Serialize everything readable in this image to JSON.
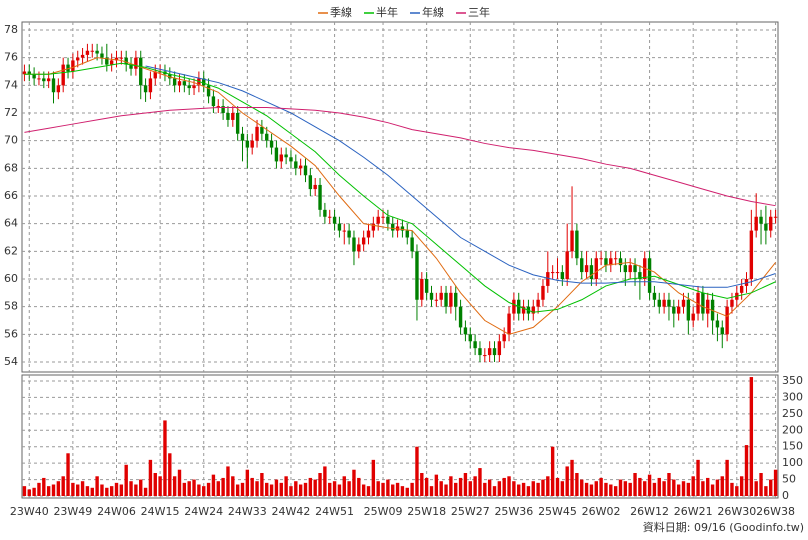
{
  "chart_data": {
    "type": "candlestick",
    "xticks": [
      {
        "value": 1,
        "label": "23W40"
      },
      {
        "value": 10,
        "label": "23W49"
      },
      {
        "value": 19,
        "label": "24W06"
      },
      {
        "value": 28,
        "label": "24W15"
      },
      {
        "value": 37,
        "label": "24W24"
      },
      {
        "value": 46,
        "label": "24W33"
      },
      {
        "value": 55,
        "label": "24W42"
      },
      {
        "value": 64,
        "label": "24W51"
      },
      {
        "value": 74,
        "label": "25W09"
      },
      {
        "value": 83,
        "label": "25W18"
      },
      {
        "value": 92,
        "label": "25W27"
      },
      {
        "value": 101,
        "label": "25W36"
      },
      {
        "value": 110,
        "label": "25W45"
      },
      {
        "value": 119,
        "label": "26W02"
      },
      {
        "value": 129,
        "label": "26W12"
      },
      {
        "value": 138,
        "label": "26W21"
      },
      {
        "value": 147,
        "label": "26W30"
      },
      {
        "value": 155,
        "label": "26W38"
      }
    ],
    "xlim": [
      -0.5,
      155.5
    ],
    "ylim": [
      54,
      78
    ],
    "yticks": [
      54,
      56,
      58,
      60,
      62,
      64,
      66,
      68,
      70,
      72,
      74,
      76,
      78
    ],
    "grid": true,
    "up_color": "#e00000",
    "down_color": "#008000",
    "open": [
      74.8,
      75,
      74.8,
      74.5,
      74.5,
      74.3,
      74.5,
      73.5,
      74,
      75.5,
      75,
      75.8,
      76,
      76.2,
      76.5,
      76.5,
      76.3,
      76,
      75.5,
      75.8,
      76,
      76,
      75.5,
      75.2,
      76,
      74,
      73.5,
      74.5,
      75,
      75,
      74.8,
      74.5,
      74,
      74.3,
      74,
      73.8,
      74,
      74.5,
      74,
      73.2,
      72.5,
      72.5,
      72,
      71.5,
      72,
      70.5,
      70,
      69.5,
      70,
      71,
      70.5,
      70,
      69.5,
      68.5,
      69,
      68.8,
      68.5,
      68,
      68.2,
      67.5,
      66.5,
      66.8,
      65,
      64.5,
      64.5,
      64,
      63.5,
      63.5,
      63,
      62,
      62.5,
      63,
      63.5,
      64,
      64.5,
      64.5,
      64,
      63.5,
      63.8,
      63.5,
      63,
      62,
      58.5,
      60,
      59,
      58.5,
      58.5,
      59,
      58,
      59,
      58,
      56.5,
      56,
      55.5,
      55,
      54.5,
      54.5,
      55,
      54.5,
      55.5,
      56,
      57.5,
      58.5,
      57.5,
      58,
      57.5,
      58,
      58.5,
      59.5,
      60.5,
      60.5,
      60.5,
      60,
      62,
      63.5,
      61.5,
      60.5,
      61,
      60,
      61.5,
      61.5,
      61,
      61.5,
      61.5,
      61,
      60.5,
      61,
      60.5,
      60,
      61.5,
      59,
      58.5,
      58,
      58.5,
      58,
      57.5,
      58,
      58.5,
      57,
      57.5,
      59,
      57.5,
      58.5,
      57,
      56.5,
      56,
      58,
      58.5,
      59,
      59.5,
      60,
      63.5,
      64.5,
      64,
      63.5,
      64.5
    ],
    "high": [
      75.5,
      75.5,
      75.3,
      75,
      75,
      75,
      75,
      74.5,
      76,
      76,
      76.3,
      76.5,
      76.7,
      77,
      77,
      77,
      76.8,
      77,
      76.3,
      76.5,
      76.5,
      76.5,
      76,
      76.5,
      76.5,
      74.5,
      75,
      75.5,
      75.5,
      75.5,
      75.3,
      75,
      74.8,
      74.8,
      74.5,
      74.5,
      75,
      75,
      74.5,
      73.7,
      73,
      73,
      72.5,
      72.5,
      72.5,
      71,
      70.5,
      70.5,
      71.5,
      71.5,
      71,
      70.5,
      70,
      69.5,
      69.5,
      69.3,
      69,
      68.7,
      68.7,
      68,
      67.3,
      67.3,
      65.5,
      65,
      65,
      64.5,
      64,
      64,
      63.5,
      63,
      63.5,
      64,
      64.5,
      65,
      65,
      65,
      64.5,
      64.3,
      64.3,
      64,
      63.5,
      62.5,
      60.5,
      60.5,
      59.5,
      59,
      59.5,
      59.5,
      59.5,
      59.5,
      58.5,
      57,
      56.5,
      56,
      55.5,
      55,
      55.5,
      55.5,
      56,
      56.5,
      58,
      59,
      59,
      58.5,
      58.5,
      58.5,
      59,
      60,
      62,
      61,
      61.5,
      61,
      64,
      66.7,
      64,
      62,
      62,
      61.5,
      62,
      62,
      62,
      62,
      62,
      62,
      61.5,
      61.5,
      61.5,
      61,
      62,
      62,
      59.5,
      59,
      59,
      59,
      58.5,
      58.5,
      59,
      59,
      58,
      59.5,
      59.5,
      59,
      59,
      57.5,
      57,
      58.5,
      59,
      59.5,
      60,
      60.5,
      65,
      66.2,
      65,
      65.3,
      65,
      65
    ],
    "low": [
      74.3,
      74.3,
      74,
      74,
      73.8,
      73.8,
      72.7,
      73,
      73.5,
      74.5,
      74.5,
      75.3,
      75.5,
      75.7,
      76,
      75.8,
      75.5,
      75,
      75,
      75.3,
      75.5,
      75,
      74.7,
      74.7,
      73,
      72.8,
      73,
      74,
      74.5,
      74.3,
      74,
      73.5,
      73.5,
      73.5,
      73.3,
      73.3,
      73.5,
      73.5,
      72.7,
      72,
      72,
      71.5,
      71,
      71,
      70,
      68.5,
      68,
      69,
      69.5,
      70,
      69.5,
      69,
      68,
      68,
      68.3,
      68,
      67.5,
      67.5,
      67,
      66,
      66,
      64.5,
      64,
      64,
      63.5,
      63,
      62.5,
      62.5,
      61,
      61.5,
      62,
      62.5,
      63,
      63.5,
      64,
      63.5,
      63,
      63,
      63,
      62.5,
      61.5,
      57,
      58,
      58.5,
      58,
      58,
      58,
      57.5,
      57.5,
      57,
      56,
      55.5,
      55,
      54.5,
      54,
      54,
      54,
      54,
      54,
      55,
      55.5,
      57,
      57,
      57,
      57,
      57,
      57.5,
      58,
      59,
      60,
      60,
      59.5,
      59.5,
      61.5,
      61,
      60,
      60,
      59.5,
      59.5,
      61,
      60.5,
      60.5,
      61,
      60.5,
      59.5,
      60,
      59.5,
      58.5,
      59.5,
      58.5,
      58,
      57.5,
      57.5,
      57,
      56.5,
      57,
      57.5,
      56,
      56.5,
      57,
      57,
      56.5,
      56,
      55.5,
      55,
      55.5,
      57.5,
      58,
      58.5,
      59,
      59.5,
      63,
      62.5,
      62.5,
      63,
      64
    ],
    "close": [
      75,
      74.8,
      74.5,
      74.5,
      74.3,
      74.5,
      73.5,
      74,
      75.5,
      75,
      75.8,
      76,
      76.2,
      76.5,
      76.5,
      76.3,
      76,
      75.5,
      75.8,
      76,
      76,
      75.5,
      75.2,
      76,
      74,
      73.5,
      74.5,
      75,
      75,
      74.8,
      74.5,
      74,
      74.3,
      74,
      73.8,
      74,
      74.5,
      74,
      73.2,
      72.5,
      72.5,
      72,
      71.5,
      72,
      70.5,
      70,
      69.5,
      70,
      71,
      70.5,
      70,
      69.5,
      68.5,
      69,
      68.8,
      68.5,
      68,
      68.2,
      67.5,
      66.5,
      66.8,
      65,
      64.5,
      64.5,
      64,
      63.5,
      63.5,
      63,
      62,
      62.5,
      63,
      63.5,
      64,
      64.5,
      64.5,
      64,
      63.5,
      63.8,
      63.5,
      63,
      62,
      58.5,
      60,
      59,
      58.5,
      58.5,
      59,
      58,
      59,
      58,
      56.5,
      56,
      55.5,
      55,
      54.5,
      54.5,
      55,
      54.5,
      55.5,
      56,
      57.5,
      58.5,
      57.5,
      58,
      57.5,
      58,
      58.5,
      59.5,
      60.5,
      60.5,
      60.5,
      60,
      62,
      63.5,
      61.5,
      60.5,
      61,
      60,
      61.5,
      61.5,
      61,
      61.5,
      61.5,
      61,
      60.5,
      61,
      60.5,
      60,
      61.5,
      59,
      58.5,
      58,
      58.5,
      58,
      57.5,
      58,
      58.5,
      57,
      57.5,
      59,
      57.5,
      58.5,
      57,
      56.5,
      56,
      58,
      58.5,
      59,
      59.5,
      60,
      63.5,
      64.5,
      64,
      63.5,
      64.5,
      64.5
    ],
    "moving_averages": {
      "x": [
        0,
        5,
        10,
        15,
        20,
        25,
        30,
        35,
        40,
        45,
        50,
        55,
        60,
        65,
        70,
        75,
        80,
        85,
        90,
        95,
        100,
        105,
        110,
        115,
        120,
        125,
        130,
        135,
        140,
        145,
        150,
        155
      ],
      "series": [
        {
          "name": "季線",
          "color": "#e06a10",
          "values": [
            74.8,
            74.8,
            75.3,
            76,
            75.8,
            75.2,
            74.6,
            74.2,
            73.5,
            72,
            70.8,
            69.6,
            68.2,
            66,
            64,
            63.7,
            63.5,
            61.5,
            59,
            57,
            56,
            56.5,
            58,
            59.8,
            61,
            61.2,
            60.5,
            59,
            58,
            57.3,
            59,
            61.2
          ]
        },
        {
          "name": "半年",
          "color": "#00c000",
          "values": [
            74.8,
            74.8,
            75,
            75.3,
            75.6,
            75.3,
            74.8,
            74.4,
            73.8,
            72.8,
            71.8,
            70.5,
            69.2,
            67.5,
            66,
            64.6,
            64,
            62.5,
            61,
            59.5,
            58.3,
            57.6,
            57.8,
            58.5,
            59.5,
            60,
            60.2,
            59.6,
            59,
            58.6,
            59,
            59.8
          ]
        },
        {
          "name": "年線",
          "color": "#2a62c0",
          "values": [
            null,
            null,
            null,
            null,
            null,
            75.4,
            75,
            74.6,
            74.2,
            73.6,
            72.8,
            72,
            71,
            70,
            68.8,
            67.5,
            66,
            64.5,
            63,
            62,
            61,
            60.3,
            59.9,
            59.7,
            59.7,
            59.8,
            59.8,
            59.6,
            59.4,
            59.4,
            59.8,
            60.4
          ]
        },
        {
          "name": "三年",
          "color": "#d0206e",
          "values": [
            70.6,
            70.9,
            71.2,
            71.5,
            71.8,
            72,
            72.2,
            72.3,
            72.4,
            72.4,
            72.4,
            72.3,
            72.2,
            72,
            71.7,
            71.3,
            70.8,
            70.5,
            70.2,
            69.8,
            69.5,
            69.3,
            69,
            68.7,
            68.3,
            68,
            67.5,
            67,
            66.5,
            66,
            65.6,
            65.3
          ]
        }
      ]
    },
    "volume": {
      "color": "#e00000",
      "y2lim": [
        0,
        350
      ],
      "y2ticks": [
        0,
        50,
        100,
        150,
        200,
        250,
        300,
        350
      ],
      "values": [
        30,
        20,
        25,
        40,
        55,
        30,
        35,
        45,
        60,
        130,
        40,
        35,
        45,
        30,
        25,
        60,
        35,
        25,
        30,
        40,
        35,
        95,
        45,
        35,
        50,
        25,
        110,
        70,
        60,
        230,
        130,
        60,
        80,
        40,
        45,
        50,
        35,
        30,
        40,
        65,
        45,
        55,
        90,
        60,
        35,
        40,
        80,
        55,
        45,
        70,
        40,
        35,
        50,
        40,
        60,
        30,
        45,
        35,
        40,
        55,
        50,
        70,
        90,
        40,
        45,
        35,
        60,
        45,
        80,
        55,
        35,
        30,
        110,
        45,
        40,
        50,
        35,
        40,
        30,
        25,
        40,
        150,
        70,
        55,
        30,
        65,
        45,
        35,
        60,
        40,
        55,
        70,
        45,
        60,
        85,
        40,
        50,
        30,
        45,
        55,
        60,
        45,
        35,
        40,
        30,
        45,
        40,
        50,
        60,
        150,
        55,
        45,
        90,
        110,
        70,
        50,
        40,
        35,
        45,
        55,
        40,
        35,
        30,
        50,
        45,
        40,
        70,
        55,
        45,
        65,
        40,
        55,
        45,
        70,
        50,
        35,
        45,
        40,
        60,
        110,
        45,
        55,
        35,
        50,
        60,
        110,
        40,
        30,
        60,
        155,
        362,
        45,
        70,
        30,
        50,
        80
      ]
    },
    "footer": "資料日期: 09/16 (Goodinfo.tw)"
  }
}
